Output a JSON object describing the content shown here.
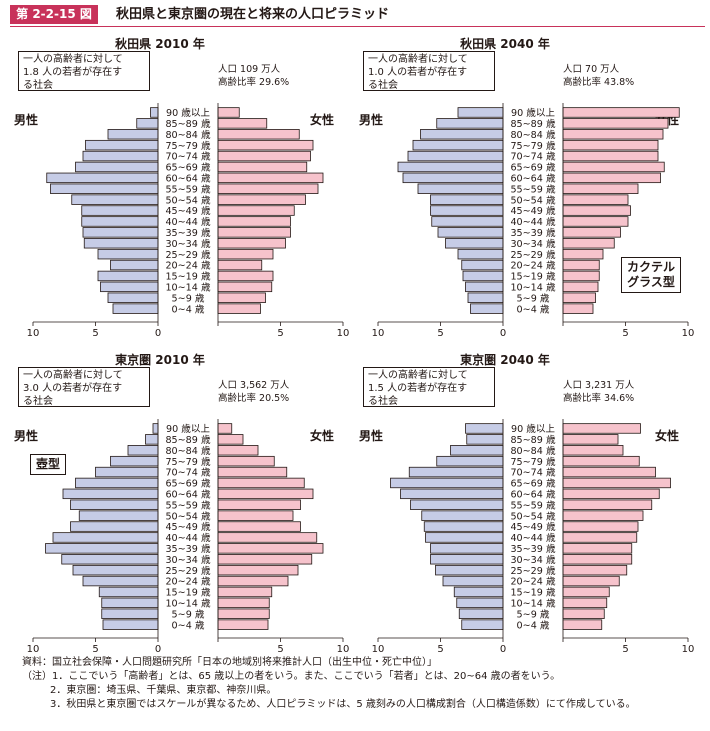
{
  "figure": {
    "label": "第 2-2-15 図",
    "title": "秋田県と東京圏の現在と将来の人口ピラミッド"
  },
  "colors": {
    "male": "#c6cce6",
    "female": "#f6c3cc",
    "accent": "#c8325a",
    "stroke": "#231815"
  },
  "panels": [
    {
      "title": "秋田県 2010 年",
      "note_lines": [
        "一人の高齢者に対して",
        "1.8 人の若者が存在す",
        "る社会"
      ],
      "population": "人口 109 万人",
      "aging_rate": "高齢比率 29.6%",
      "male_label": "男性",
      "female_label": "女性",
      "type_label_lines": []
    },
    {
      "title": "秋田県 2040 年",
      "note_lines": [
        "一人の高齢者に対して",
        "1.0 人の若者が存在す",
        "る社会"
      ],
      "population": "人口 70 万人",
      "aging_rate": "高齢比率 43.8%",
      "male_label": "男性",
      "female_label": "女性",
      "type_label_lines": [
        "カクテル",
        "グラス型"
      ]
    },
    {
      "title": "東京圏 2010 年",
      "note_lines": [
        "一人の高齢者に対して",
        "3.0 人の若者が存在す",
        "る社会"
      ],
      "population": "人口 3,562 万人",
      "aging_rate": "高齢比率 20.5%",
      "male_label": "男性",
      "female_label": "女性",
      "type_label_lines": [
        "壺型"
      ]
    },
    {
      "title": "東京圏 2040 年",
      "note_lines": [
        "一人の高齢者に対して",
        "1.5 人の若者が存在す",
        "る社会"
      ],
      "population": "人口 3,231 万人",
      "aging_rate": "高齢比率 34.6%",
      "male_label": "男性",
      "female_label": "女性",
      "type_label_lines": []
    }
  ],
  "chart_data": [
    {
      "type": "bar",
      "orientation": "horizontal",
      "title": "秋田県 2010 年",
      "categories": [
        "0~4 歳",
        "5~9 歳",
        "10~14 歳",
        "15~19 歳",
        "20~24 歳",
        "25~29 歳",
        "30~34 歳",
        "35~39 歳",
        "40~44 歳",
        "45~49 歳",
        "50~54 歳",
        "55~59 歳",
        "60~64 歳",
        "65~69 歳",
        "70~74 歳",
        "75~79 歳",
        "80~84 歳",
        "85~89 歳",
        "90 歳以上"
      ],
      "category_labels": [
        "0~4 歳",
        "5~9 歳",
        "10~14 歳",
        "15~19 歳",
        "20~24 歳",
        "25~29 歳",
        "30~34 歳",
        "35~39 歳",
        "40~44 歳",
        "45~49 歳",
        "50~54 歳",
        "55~59 歳",
        "60~64 歳",
        "65~69 歳",
        "70~74 歳",
        "75~79 歳",
        "80~84 歳",
        "85~89 歳",
        "90 歳以上"
      ],
      "series": [
        {
          "name": "男性",
          "values": [
            3.6,
            4.0,
            4.6,
            4.8,
            3.8,
            4.8,
            5.9,
            6.0,
            6.1,
            6.1,
            6.9,
            8.6,
            8.9,
            6.6,
            6.0,
            5.8,
            4.0,
            1.7,
            0.6
          ]
        },
        {
          "name": "女性",
          "values": [
            3.4,
            3.8,
            4.3,
            4.4,
            3.5,
            4.4,
            5.4,
            5.8,
            5.8,
            6.1,
            7.0,
            8.0,
            8.4,
            7.1,
            7.4,
            7.6,
            6.5,
            3.9,
            1.7
          ]
        }
      ],
      "xlim": [
        0,
        10
      ],
      "ticks": [
        "10",
        "5",
        "0",
        "5",
        "10"
      ]
    },
    {
      "type": "bar",
      "orientation": "horizontal",
      "title": "秋田県 2040 年",
      "categories": [
        "0~4 歳",
        "5~9 歳",
        "10~14 歳",
        "15~19 歳",
        "20~24 歳",
        "25~29 歳",
        "30~34 歳",
        "35~39 歳",
        "40~44 歳",
        "45~49 歳",
        "50~54 歳",
        "55~59 歳",
        "60~64 歳",
        "65~69 歳",
        "70~74 歳",
        "75~79 歳",
        "80~84 歳",
        "85~89 歳",
        "90 歳以上"
      ],
      "category_labels": [
        "0~4 歳",
        "5~9 歳",
        "10~14 歳",
        "15~19 歳",
        "20~24 歳",
        "25~29 歳",
        "30~34 歳",
        "35~39 歳",
        "40~44 歳",
        "45~49 歳",
        "50~54 歳",
        "55~59 歳",
        "60~64 歳",
        "65~69 歳",
        "70~74 歳",
        "75~79 歳",
        "80~84 歳",
        "85~89 歳",
        "90 歳以上"
      ],
      "series": [
        {
          "name": "男性",
          "values": [
            2.6,
            2.8,
            3.0,
            3.2,
            3.3,
            3.6,
            4.6,
            5.2,
            5.7,
            5.8,
            5.8,
            6.8,
            8.0,
            8.4,
            7.6,
            7.2,
            6.6,
            5.3,
            3.6
          ]
        },
        {
          "name": "女性",
          "values": [
            2.4,
            2.6,
            2.8,
            2.9,
            2.9,
            3.2,
            4.1,
            4.6,
            5.2,
            5.4,
            5.2,
            6.0,
            7.8,
            8.1,
            7.6,
            7.6,
            8.0,
            8.4,
            9.3
          ]
        }
      ],
      "xlim": [
        0,
        10
      ],
      "ticks": [
        "10",
        "5",
        "0",
        "5",
        "10"
      ]
    },
    {
      "type": "bar",
      "orientation": "horizontal",
      "title": "東京圏 2010 年",
      "categories": [
        "0~4 歳",
        "5~9 歳",
        "10~14 歳",
        "15~19 歳",
        "20~24 歳",
        "25~29 歳",
        "30~34 歳",
        "35~39 歳",
        "40~44 歳",
        "45~49 歳",
        "50~54 歳",
        "55~59 歳",
        "60~64 歳",
        "65~69 歳",
        "70~74 歳",
        "75~79 歳",
        "80~84 歳",
        "85~89 歳",
        "90 歳以上"
      ],
      "category_labels": [
        "0~4 歳",
        "5~9 歳",
        "10~14 歳",
        "15~19 歳",
        "20~24 歳",
        "25~29 歳",
        "30~34 歳",
        "35~39 歳",
        "40~44 歳",
        "45~49 歳",
        "50~54 歳",
        "55~59 歳",
        "60~64 歳",
        "65~69 歳",
        "70~74 歳",
        "75~79 歳",
        "80~84 歳",
        "85~89 歳",
        "90 歳以上"
      ],
      "series": [
        {
          "name": "男性",
          "values": [
            4.4,
            4.5,
            4.5,
            4.7,
            6.0,
            6.8,
            7.7,
            9.0,
            8.4,
            7.0,
            6.3,
            7.0,
            7.6,
            6.6,
            5.0,
            3.8,
            2.4,
            1.0,
            0.4
          ]
        },
        {
          "name": "女性",
          "values": [
            4.0,
            4.1,
            4.1,
            4.3,
            5.6,
            6.4,
            7.5,
            8.4,
            7.9,
            6.6,
            6.0,
            6.6,
            7.6,
            6.9,
            5.5,
            4.5,
            3.2,
            2.0,
            1.1
          ]
        }
      ],
      "xlim": [
        0,
        10
      ],
      "ticks": [
        "10",
        "5",
        "0",
        "5",
        "10"
      ]
    },
    {
      "type": "bar",
      "orientation": "horizontal",
      "title": "東京圏 2040 年",
      "categories": [
        "0~4 歳",
        "5~9 歳",
        "10~14 歳",
        "15~19 歳",
        "20~24 歳",
        "25~29 歳",
        "30~34 歳",
        "35~39 歳",
        "40~44 歳",
        "45~49 歳",
        "50~54 歳",
        "55~59 歳",
        "60~64 歳",
        "65~69 歳",
        "70~74 歳",
        "75~79 歳",
        "80~84 歳",
        "85~89 歳",
        "90 歳以上"
      ],
      "category_labels": [
        "0~4 歳",
        "5~9 歳",
        "10~14 歳",
        "15~19 歳",
        "20~24 歳",
        "25~29 歳",
        "30~34 歳",
        "35~39 歳",
        "40~44 歳",
        "45~49 歳",
        "50~54 歳",
        "55~59 歳",
        "60~64 歳",
        "65~69 歳",
        "70~74 歳",
        "75~79 歳",
        "80~84 歳",
        "85~89 歳",
        "90 歳以上"
      ],
      "series": [
        {
          "name": "男性",
          "values": [
            3.3,
            3.5,
            3.7,
            3.9,
            4.8,
            5.4,
            5.8,
            5.8,
            6.2,
            6.3,
            6.5,
            7.4,
            8.2,
            9.0,
            7.5,
            5.3,
            4.2,
            2.9,
            3.0
          ]
        },
        {
          "name": "女性",
          "values": [
            3.1,
            3.3,
            3.5,
            3.7,
            4.5,
            5.1,
            5.5,
            5.5,
            5.9,
            6.0,
            6.4,
            7.1,
            7.7,
            8.6,
            7.4,
            6.1,
            4.8,
            4.4,
            6.2
          ]
        }
      ],
      "xlim": [
        0,
        10
      ],
      "ticks": [
        "10",
        "5",
        "0",
        "5",
        "10"
      ]
    }
  ],
  "footer": {
    "source": "資料：国立社会保障・人口問題研究所「日本の地域別将来推計人口（出生中位・死亡中位）」",
    "note1": "（注）1．ここでいう「高齢者」とは、65 歳以上の者をいう。また、ここでいう「若者」とは、20~64 歳の者をいう。",
    "note2": "2．東京圏：埼玉県、千葉県、東京都、神奈川県。",
    "note3": "3．秋田県と東京圏ではスケールが異なるため、人口ピラミッドは、5 歳刻みの人口構成割合（人口構造係数）にて作成している。"
  }
}
